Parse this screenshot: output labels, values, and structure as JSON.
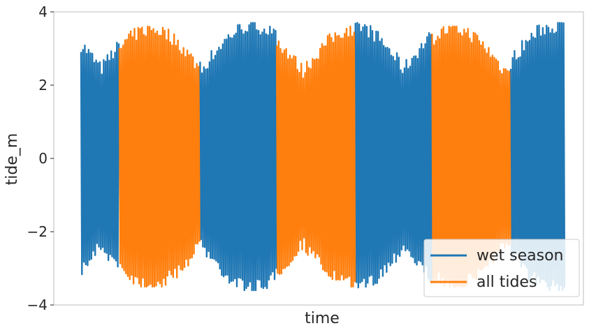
{
  "chart_data": {
    "type": "line",
    "xlabel": "time",
    "ylabel": "tide_m",
    "ylim": [
      -4,
      4
    ],
    "yticks": [
      {
        "value": 4,
        "label": "4"
      },
      {
        "value": 2,
        "label": "2"
      },
      {
        "value": 0,
        "label": "0"
      },
      {
        "value": -2,
        "label": "−2"
      },
      {
        "value": -4,
        "label": "−4"
      }
    ],
    "x_range": [
      0,
      1
    ],
    "x_tick_labels_shown": false,
    "grid": false,
    "legend_placement": "lower right",
    "series": [
      {
        "name": "wet season",
        "color": "#1f77b4",
        "segments": [
          [
            0.0,
            0.095
          ],
          [
            0.295,
            0.485
          ],
          [
            0.68,
            0.87
          ],
          [
            1.065,
            1.2
          ]
        ],
        "amplitude_range": [
          -3.6,
          3.7
        ]
      },
      {
        "name": "all tides",
        "color": "#ff7f0e",
        "segments": [
          [
            0.095,
            0.295
          ],
          [
            0.485,
            0.68
          ],
          [
            0.87,
            1.065
          ]
        ],
        "amplitude_range": [
          -3.5,
          3.6
        ]
      }
    ]
  }
}
